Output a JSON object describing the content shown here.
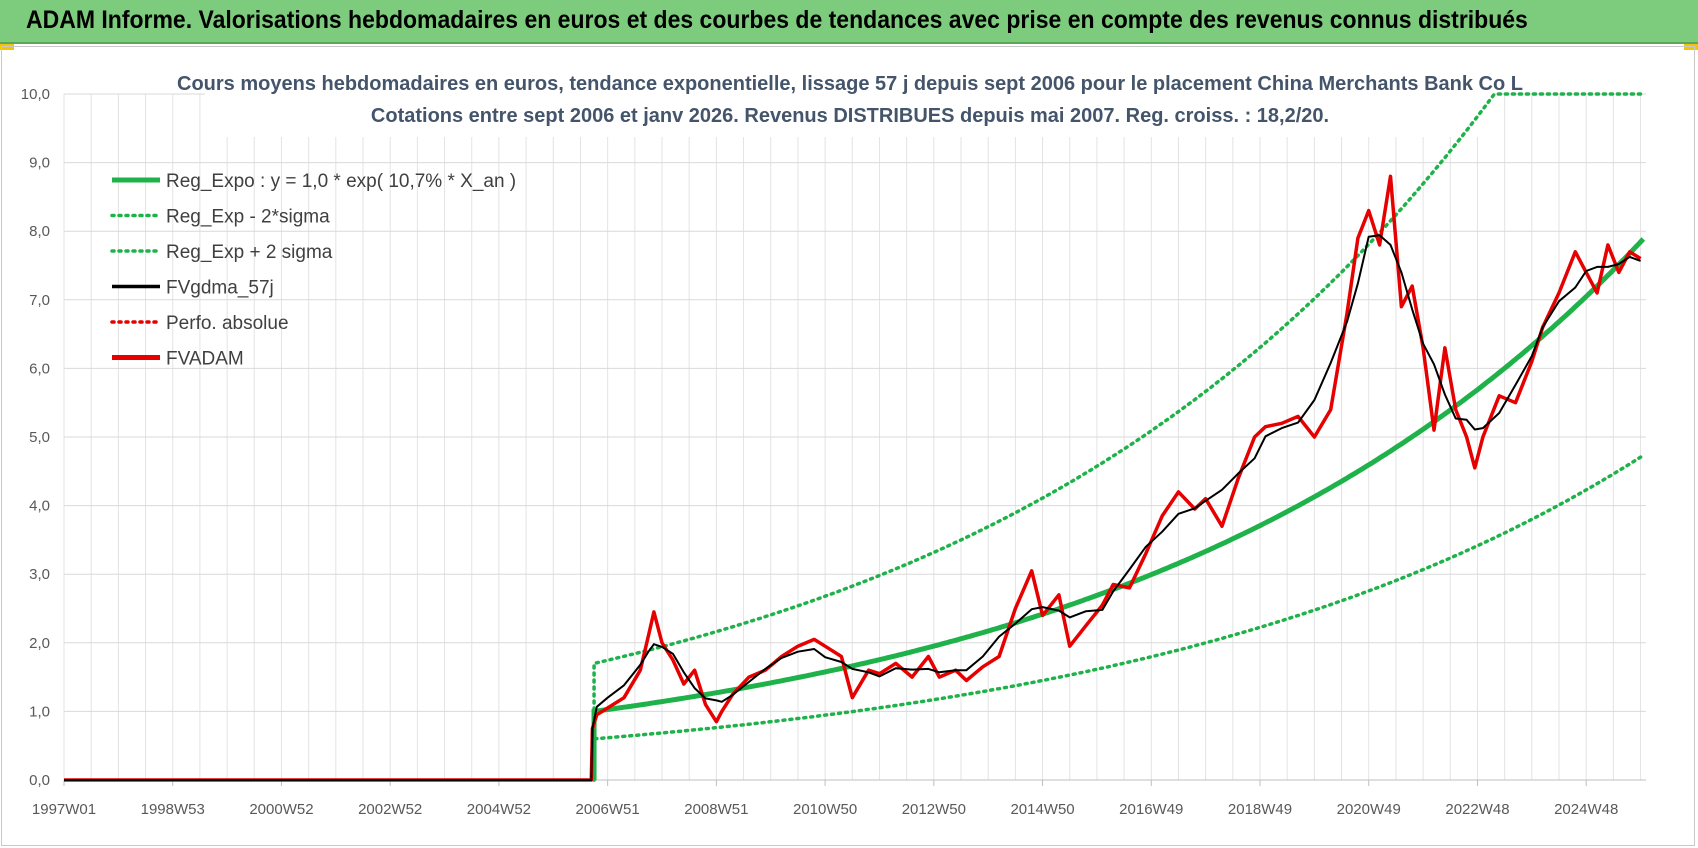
{
  "banner": {
    "title": "ADAM Informe. Valorisations hebdomadaires en euros et des courbes de tendances avec prise en compte des revenus connus distribués"
  },
  "chart_data": {
    "type": "line",
    "title": [
      "Cours moyens hebdomadaires en euros, tendance exponentielle, lissage 57 j depuis sept 2006 pour le placement China Merchants Bank Co L",
      "Cotations entre sept 2006 et janv 2026. Revenus DISTRIBUES depuis mai 2007. Reg. croiss. : 18,2/20."
    ],
    "xlabel": "",
    "ylabel": "",
    "ylim": [
      0,
      10
    ],
    "xlim": [
      1997.0,
      2026.1
    ],
    "y_ticks": [
      "0,0",
      "1,0",
      "2,0",
      "3,0",
      "4,0",
      "5,0",
      "6,0",
      "7,0",
      "8,0",
      "9,0",
      "10,0"
    ],
    "x_ticks": [
      {
        "label": "1997W01",
        "t": 1997.0
      },
      {
        "label": "1998W53",
        "t": 1999.0
      },
      {
        "label": "2000W52",
        "t": 2001.0
      },
      {
        "label": "2002W52",
        "t": 2003.0
      },
      {
        "label": "2004W52",
        "t": 2005.0
      },
      {
        "label": "2006W51",
        "t": 2007.0
      },
      {
        "label": "2008W51",
        "t": 2009.0
      },
      {
        "label": "2010W50",
        "t": 2011.0
      },
      {
        "label": "2012W50",
        "t": 2013.0
      },
      {
        "label": "2014W50",
        "t": 2015.0
      },
      {
        "label": "2016W49",
        "t": 2017.0
      },
      {
        "label": "2018W49",
        "t": 2019.0
      },
      {
        "label": "2020W49",
        "t": 2021.0
      },
      {
        "label": "2022W48",
        "t": 2023.0
      },
      {
        "label": "2024W48",
        "t": 2025.0
      }
    ],
    "legend": [
      {
        "name": "Reg_Expo : y = 1,0 * exp( 10,7% *  X_an )",
        "color": "#1fb24a",
        "style": "solid-thick"
      },
      {
        "name": "Reg_Exp - 2*sigma",
        "color": "#1fb24a",
        "style": "dotted"
      },
      {
        "name": "Reg_Exp + 2 sigma",
        "color": "#1fb24a",
        "style": "dotted"
      },
      {
        "name": "FVgdma_57j",
        "color": "#000000",
        "style": "solid"
      },
      {
        "name": "Perfo. absolue",
        "color": "#e60000",
        "style": "dotted"
      },
      {
        "name": "FVADAM",
        "color": "#e60000",
        "style": "solid-thick"
      }
    ],
    "legend_position": "top-left",
    "series": [
      {
        "name": "Reg_Expo",
        "model": "exponential",
        "start": 2006.75,
        "y0": 1.0,
        "rate": 0.107
      },
      {
        "name": "Reg_Exp - 2*sigma",
        "model": "exponential",
        "start": 2006.75,
        "y0": 0.6,
        "rate": 0.107
      },
      {
        "name": "Reg_Exp + 2 sigma",
        "model": "exponential",
        "start": 2006.75,
        "y0": 1.7,
        "rate": 0.107,
        "cap": 10.0
      },
      {
        "name": "FVADAM",
        "t": [
          1997.0,
          2006.7,
          2006.72,
          2006.8,
          2007.0,
          2007.3,
          2007.6,
          2007.75,
          2007.85,
          2008.0,
          2008.2,
          2008.4,
          2008.6,
          2008.8,
          2009.0,
          2009.1,
          2009.3,
          2009.6,
          2009.9,
          2010.2,
          2010.5,
          2010.8,
          2011.0,
          2011.3,
          2011.5,
          2011.8,
          2012.0,
          2012.3,
          2012.6,
          2012.9,
          2013.1,
          2013.4,
          2013.6,
          2013.9,
          2014.2,
          2014.5,
          2014.8,
          2015.0,
          2015.3,
          2015.5,
          2015.8,
          2016.1,
          2016.3,
          2016.6,
          2016.9,
          2017.2,
          2017.5,
          2017.8,
          2018.0,
          2018.3,
          2018.6,
          2018.9,
          2019.1,
          2019.4,
          2019.7,
          2020.0,
          2020.3,
          2020.6,
          2020.8,
          2021.0,
          2021.2,
          2021.4,
          2021.6,
          2021.8,
          2022.0,
          2022.2,
          2022.4,
          2022.6,
          2022.8,
          2022.95,
          2023.1,
          2023.4,
          2023.7,
          2024.0,
          2024.2,
          2024.5,
          2024.8,
          2025.0,
          2025.2,
          2025.4,
          2025.6,
          2025.8,
          2026.0
        ],
        "y": [
          0.0,
          0.0,
          0.75,
          0.95,
          1.05,
          1.2,
          1.6,
          2.1,
          2.45,
          2.0,
          1.75,
          1.4,
          1.6,
          1.1,
          0.85,
          1.0,
          1.25,
          1.5,
          1.6,
          1.8,
          1.95,
          2.05,
          1.95,
          1.8,
          1.2,
          1.6,
          1.55,
          1.7,
          1.5,
          1.8,
          1.5,
          1.6,
          1.45,
          1.65,
          1.8,
          2.5,
          3.05,
          2.4,
          2.7,
          1.95,
          2.25,
          2.55,
          2.85,
          2.8,
          3.3,
          3.85,
          4.2,
          3.95,
          4.1,
          3.7,
          4.4,
          5.0,
          5.15,
          5.2,
          5.3,
          5.0,
          5.4,
          6.8,
          7.9,
          8.3,
          7.8,
          8.8,
          6.9,
          7.2,
          6.3,
          5.1,
          6.3,
          5.4,
          5.0,
          4.55,
          5.0,
          5.6,
          5.5,
          6.1,
          6.6,
          7.1,
          7.7,
          7.4,
          7.1,
          7.8,
          7.4,
          7.7,
          7.6
        ]
      },
      {
        "name": "FVgdma_57j",
        "smoothing_window": 5,
        "source": "FVADAM"
      }
    ]
  }
}
